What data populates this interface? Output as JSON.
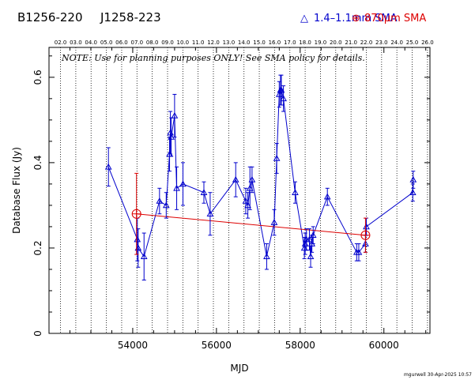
{
  "header": {
    "source_name": "B1256-220",
    "source_alias": "J1258-223",
    "legend_blue": "1.4–1.1mm SMA",
    "legend_red_prefix": "870",
    "legend_red_mu": "μ",
    "legend_red_suffix": "m SMA",
    "legend_blue_symbol": "△",
    "legend_red_symbol": "⊕"
  },
  "note": "NOTE: Use for planning purposes ONLY!  See SMA policy for details.",
  "stamp": "mgurwell 30-Apr-2025 10:57",
  "chart_data": {
    "type": "scatter",
    "title": "",
    "xlabel": "MJD",
    "ylabel": "Database Flux (Jy)",
    "xlim": [
      52000,
      61100
    ],
    "ylim": [
      0,
      0.67
    ],
    "grid": false,
    "legend_position": "top",
    "x_ticks": [
      54000,
      56000,
      58000,
      60000
    ],
    "y_ticks": [
      0,
      0.2,
      0.4,
      0.6
    ],
    "x_tick_labels": [
      "54000",
      "56000",
      "58000",
      "60000"
    ],
    "y_tick_labels": [
      "0",
      "0.2",
      "0.4",
      "0.6"
    ],
    "year_labels": [
      "02.0",
      "03.0",
      "04.0",
      "05.0",
      "06.0",
      "07.0",
      "08.0",
      "09.0",
      "10.0",
      "11.0",
      "12.0",
      "13.0",
      "14.0",
      "15.0",
      "16.0",
      "17.0",
      "18.0",
      "19.0",
      "20.0",
      "21.0",
      "22.0",
      "23.0",
      "24.0",
      "25.0",
      "26.0"
    ],
    "year_mjd": [
      52275,
      52640,
      53005,
      53371,
      53736,
      54101,
      54466,
      54832,
      55197,
      55562,
      55927,
      56293,
      56658,
      57023,
      57388,
      57754,
      58119,
      58484,
      58849,
      59215,
      59580,
      59945,
      60310,
      60676,
      61041
    ],
    "colors": {
      "band1": "#0000cc",
      "band2": "#dd0000"
    },
    "series": [
      {
        "name": "1.4–1.1mm SMA",
        "color": "#0000cc",
        "marker": "triangle",
        "x": [
          53420,
          54110,
          54130,
          54270,
          54640,
          54800,
          54880,
          54900,
          54920,
          55000,
          55050,
          55200,
          55700,
          55850,
          56460,
          56700,
          56750,
          56800,
          56850,
          57200,
          57380,
          57440,
          57500,
          57530,
          57550,
          57600,
          57880,
          58100,
          58120,
          58150,
          58220,
          58250,
          58280,
          58310,
          58650,
          59350,
          59400,
          59560,
          59580,
          60690,
          60700
        ],
        "y": [
          0.39,
          0.22,
          0.2,
          0.18,
          0.31,
          0.3,
          0.42,
          0.47,
          0.46,
          0.51,
          0.34,
          0.35,
          0.33,
          0.28,
          0.36,
          0.31,
          0.3,
          0.34,
          0.36,
          0.18,
          0.26,
          0.41,
          0.56,
          0.57,
          0.57,
          0.55,
          0.33,
          0.2,
          0.21,
          0.22,
          0.22,
          0.18,
          0.21,
          0.23,
          0.32,
          0.19,
          0.19,
          0.21,
          0.25,
          0.33,
          0.36
        ],
        "err": [
          0.045,
          0.05,
          0.045,
          0.055,
          0.03,
          0.03,
          0.04,
          0.05,
          0.045,
          0.05,
          0.05,
          0.05,
          0.025,
          0.05,
          0.04,
          0.03,
          0.03,
          0.05,
          0.03,
          0.03,
          0.03,
          0.035,
          0.03,
          0.035,
          0.035,
          0.03,
          0.025,
          0.025,
          0.025,
          0.025,
          0.025,
          0.025,
          0.02,
          0.02,
          0.02,
          0.02,
          0.02,
          0.02,
          0.02,
          0.02,
          0.02
        ]
      },
      {
        "name": "870μm SMA",
        "color": "#dd0000",
        "marker": "circle-plus",
        "x": [
          54090,
          59560
        ],
        "y": [
          0.28,
          0.23
        ],
        "err": [
          0.095,
          0.04
        ]
      }
    ]
  }
}
